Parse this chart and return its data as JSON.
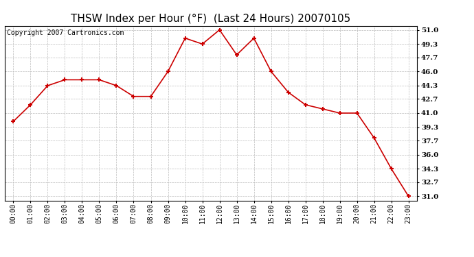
{
  "title": "THSW Index per Hour (°F)  (Last 24 Hours) 20070105",
  "copyright": "Copyright 2007 Cartronics.com",
  "hours": [
    "00:00",
    "01:00",
    "02:00",
    "03:00",
    "04:00",
    "05:00",
    "06:00",
    "07:00",
    "08:00",
    "09:00",
    "10:00",
    "11:00",
    "12:00",
    "13:00",
    "14:00",
    "15:00",
    "16:00",
    "17:00",
    "18:00",
    "19:00",
    "20:00",
    "21:00",
    "22:00",
    "23:00"
  ],
  "values": [
    40.0,
    42.0,
    44.3,
    45.0,
    45.0,
    45.0,
    44.3,
    43.0,
    43.0,
    46.0,
    50.0,
    49.3,
    51.0,
    48.0,
    50.0,
    46.0,
    43.5,
    42.0,
    41.5,
    41.0,
    41.0,
    38.0,
    34.3,
    31.0
  ],
  "yticks": [
    31.0,
    32.7,
    34.3,
    36.0,
    37.7,
    39.3,
    41.0,
    42.7,
    44.3,
    46.0,
    47.7,
    49.3,
    51.0
  ],
  "ylim": [
    30.5,
    51.5
  ],
  "line_color": "#cc0000",
  "marker_color": "#cc0000",
  "bg_color": "#ffffff",
  "grid_color": "#bbbbbb",
  "title_fontsize": 11,
  "copyright_fontsize": 7
}
